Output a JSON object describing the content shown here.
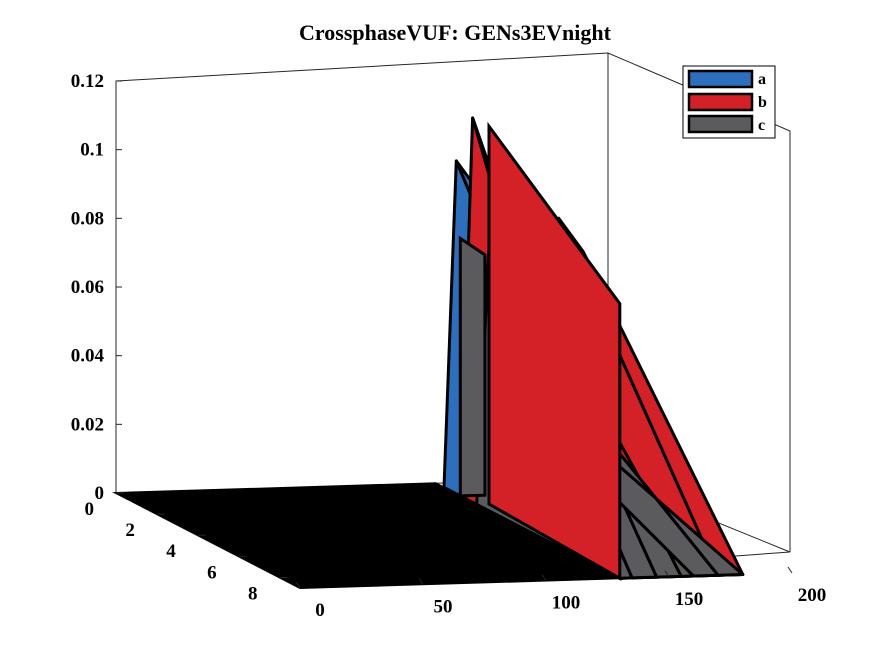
{
  "chart_data": {
    "type": "area",
    "title": "CrossphaseVUF: GENs3EVnight",
    "zlim": [
      0,
      0.12
    ],
    "z_ticks": [
      "0",
      "0.02",
      "0.04",
      "0.06",
      "0.08",
      "0.1",
      "0.12"
    ],
    "x_ticks": [
      "0",
      "50",
      "100",
      "150",
      "200"
    ],
    "x_range": [
      0,
      200
    ],
    "y_ticks": [
      "0",
      "2",
      "4",
      "6",
      "8"
    ],
    "y_range": [
      0,
      9
    ],
    "grid": false,
    "legend_position": "top-right",
    "colors": {
      "a": "#2e6fbd",
      "b": "#d42027",
      "c": "#5b5b5d",
      "edge": "#000000"
    },
    "series": [
      {
        "name": "a",
        "color": "#2e6fbd",
        "x": [
          0,
          130,
          135,
          145,
          155,
          160,
          170,
          180
        ],
        "z": [
          0,
          0,
          0.095,
          0.085,
          0.07,
          0.055,
          0.05,
          0.045
        ]
      },
      {
        "name": "b",
        "color": "#d42027",
        "x": [
          0,
          130,
          135,
          145,
          155,
          160,
          170,
          180
        ],
        "z": [
          0,
          0,
          0.11,
          0.085,
          0.09,
          0.06,
          0.08,
          0.07
        ]
      },
      {
        "name": "c",
        "color": "#5b5b5d",
        "x": [
          0,
          130,
          135,
          145,
          155,
          160,
          170,
          180
        ],
        "z": [
          0,
          0,
          0.075,
          0.07,
          0.06,
          0.02,
          0.03,
          0.015
        ]
      }
    ]
  }
}
